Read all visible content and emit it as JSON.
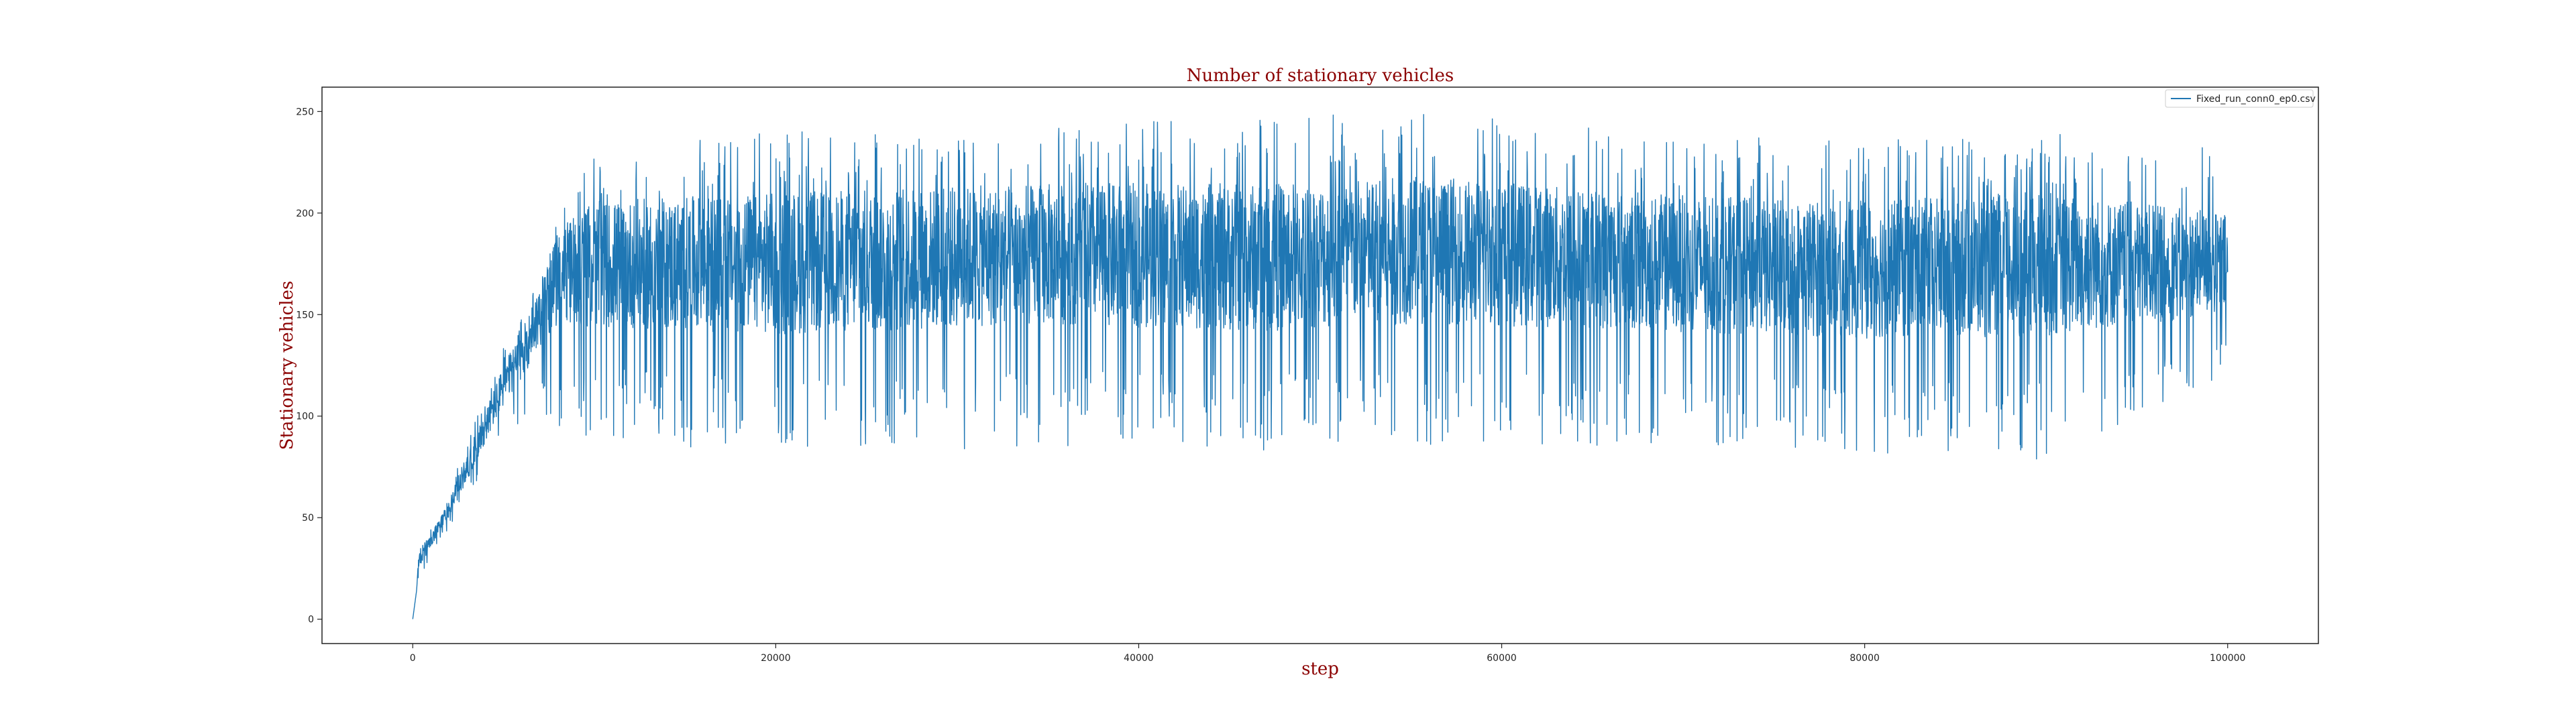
{
  "chart_data": {
    "type": "line",
    "title": "Number of stationary vehicles",
    "xlabel": "step",
    "ylabel": "Stationary vehicles",
    "xlim": [
      -5000,
      105000
    ],
    "ylim": [
      -12,
      262
    ],
    "xticks": [
      0,
      20000,
      40000,
      60000,
      80000,
      100000
    ],
    "yticks": [
      0,
      50,
      100,
      150,
      200,
      250
    ],
    "grid": false,
    "legend_position": "upper right",
    "series": [
      {
        "name": "Fixed_run_conn0_ep0.csv",
        "color": "#1f77b4",
        "description_points": {
          "x": [
            0,
            300,
            1000,
            2000,
            3000,
            4000,
            5000,
            6000,
            7000,
            8000,
            9000,
            10000,
            20000,
            36000,
            46000,
            56000,
            70000,
            80000,
            90000,
            100000
          ],
          "y_center": [
            0,
            28,
            38,
            55,
            75,
            95,
            115,
            130,
            150,
            168,
            172,
            175,
            175,
            180,
            178,
            182,
            175,
            172,
            175,
            175
          ],
          "y_min": [
            0,
            20,
            30,
            45,
            60,
            75,
            90,
            95,
            100,
            95,
            90,
            90,
            80,
            85,
            82,
            85,
            85,
            82,
            78,
            120
          ],
          "y_max": [
            0,
            35,
            45,
            65,
            90,
            110,
            135,
            150,
            170,
            200,
            215,
            230,
            240,
            243,
            248,
            250,
            238,
            236,
            240,
            232
          ]
        }
      }
    ]
  }
}
